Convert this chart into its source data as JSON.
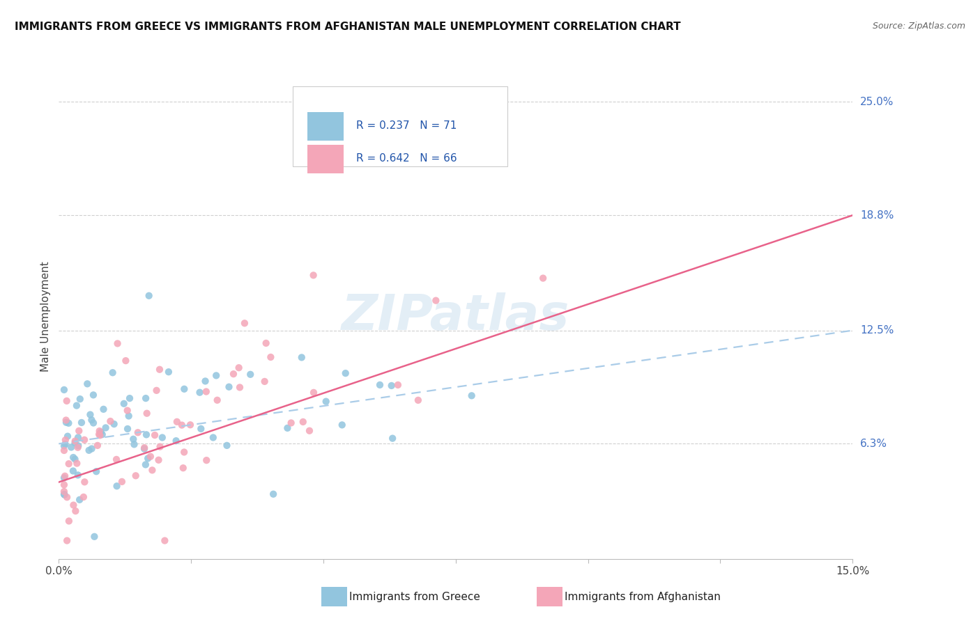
{
  "title": "IMMIGRANTS FROM GREECE VS IMMIGRANTS FROM AFGHANISTAN MALE UNEMPLOYMENT CORRELATION CHART",
  "source": "Source: ZipAtlas.com",
  "ylabel": "Male Unemployment",
  "x_min": 0.0,
  "x_max": 0.15,
  "y_min": 0.0,
  "y_max": 0.265,
  "y_tick_labels": [
    "25.0%",
    "18.8%",
    "12.5%",
    "6.3%"
  ],
  "y_tick_values": [
    0.25,
    0.188,
    0.125,
    0.063
  ],
  "legend_label1": "Immigrants from Greece",
  "legend_label2": "Immigrants from Afghanistan",
  "color_greece": "#92c5de",
  "color_afghanistan": "#f4a6b8",
  "color_trend_greece": "#92c5de",
  "color_trend_afghanistan": "#e8628a",
  "background_color": "#ffffff",
  "watermark": "ZIPatlas",
  "R_greece": 0.237,
  "N_greece": 71,
  "R_afghanistan": 0.642,
  "N_afghanistan": 66,
  "trend_greece_y0": 0.063,
  "trend_greece_y1": 0.125,
  "trend_afghanistan_y0": 0.042,
  "trend_afghanistan_y1": 0.188
}
